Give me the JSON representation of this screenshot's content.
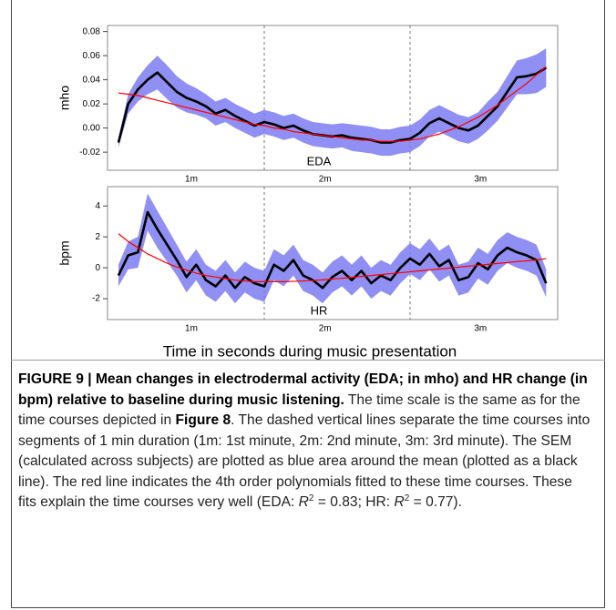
{
  "chart_data": [
    {
      "type": "line",
      "ylabel": "mho",
      "annotation": "EDA",
      "x": [
        0,
        4,
        8,
        12,
        16,
        20,
        24,
        28,
        32,
        36,
        40,
        44,
        48,
        52,
        56,
        60,
        64,
        68,
        72,
        76,
        80,
        84,
        88,
        92,
        96,
        100,
        104,
        108,
        112,
        116,
        120,
        124,
        128,
        132,
        136,
        140,
        144,
        148,
        152,
        156,
        160,
        164,
        168,
        172,
        176
      ],
      "xlim": [
        -4.5,
        180.75
      ],
      "xticks": [
        {
          "value": 30,
          "label": "1m"
        },
        {
          "value": 85,
          "label": "2m"
        },
        {
          "value": 149,
          "label": "3m"
        }
      ],
      "vlines": [
        60,
        120
      ],
      "ylim": [
        -0.035,
        0.085
      ],
      "yticks": [
        -0.02,
        {
          "value": 0,
          "label": "0.00"
        },
        0.02,
        0.04,
        0.06,
        0.08
      ],
      "series": [
        {
          "color": "#000000",
          "band_color": "#7b7bf2",
          "values": [
            -0.012,
            0.02,
            0.032,
            0.04,
            0.046,
            0.038,
            0.03,
            0.025,
            0.022,
            0.018,
            0.012,
            0.015,
            0.01,
            0.006,
            0.002,
            0.005,
            0.003,
            0.0,
            0.002,
            -0.002,
            -0.005,
            -0.006,
            -0.007,
            -0.006,
            -0.008,
            -0.009,
            -0.01,
            -0.012,
            -0.012,
            -0.01,
            -0.009,
            -0.004,
            0.004,
            0.008,
            0.004,
            0.0,
            -0.002,
            0.002,
            0.01,
            0.018,
            0.03,
            0.042,
            0.043,
            0.045,
            0.05
          ],
          "error": [
            0.004,
            0.008,
            0.01,
            0.012,
            0.014,
            0.014,
            0.013,
            0.012,
            0.011,
            0.01,
            0.01,
            0.01,
            0.01,
            0.01,
            0.01,
            0.01,
            0.01,
            0.01,
            0.01,
            0.01,
            0.01,
            0.01,
            0.01,
            0.01,
            0.011,
            0.011,
            0.011,
            0.011,
            0.011,
            0.011,
            0.011,
            0.011,
            0.011,
            0.011,
            0.011,
            0.011,
            0.011,
            0.011,
            0.012,
            0.012,
            0.013,
            0.014,
            0.015,
            0.016,
            0.016
          ]
        },
        {
          "color": "#ff0000",
          "values": [
            0.029,
            0.028,
            0.027,
            0.025,
            0.023,
            0.021,
            0.019,
            0.017,
            0.015,
            0.013,
            0.011,
            0.009,
            0.007,
            0.005,
            0.003,
            0.002,
            0.0,
            -0.001,
            -0.003,
            -0.004,
            -0.005,
            -0.006,
            -0.007,
            -0.008,
            -0.009,
            -0.01,
            -0.01,
            -0.011,
            -0.011,
            -0.011,
            -0.01,
            -0.009,
            -0.007,
            -0.005,
            -0.002,
            0.001,
            0.005,
            0.009,
            0.014,
            0.019,
            0.025,
            0.031,
            0.037,
            0.044,
            0.051
          ]
        }
      ]
    },
    {
      "type": "line",
      "ylabel": "bpm",
      "annotation": "HR",
      "xlabel": "Time in seconds during music presentation",
      "x": [
        0,
        4,
        8,
        12,
        16,
        20,
        24,
        28,
        32,
        36,
        40,
        44,
        48,
        52,
        56,
        60,
        64,
        68,
        72,
        76,
        80,
        84,
        88,
        92,
        96,
        100,
        104,
        108,
        112,
        116,
        120,
        124,
        128,
        132,
        136,
        140,
        144,
        148,
        152,
        156,
        160,
        164,
        168,
        172,
        176
      ],
      "xlim": [
        -4.5,
        180.75
      ],
      "xticks": [
        {
          "value": 30,
          "label": "1m"
        },
        {
          "value": 85,
          "label": "2m"
        },
        {
          "value": 149,
          "label": "3m"
        }
      ],
      "vlines": [
        60,
        120
      ],
      "ylim": [
        -3.35,
        5.25
      ],
      "yticks": [
        -2,
        0,
        2,
        4
      ],
      "series": [
        {
          "color": "#000000",
          "band_color": "#7b7bf2",
          "values": [
            -0.5,
            0.8,
            1.0,
            3.6,
            2.5,
            1.5,
            0.5,
            -0.6,
            0.2,
            -0.8,
            -1.2,
            -0.5,
            -1.3,
            -0.6,
            -1.0,
            -1.2,
            0.2,
            -0.2,
            0.5,
            -0.5,
            -0.8,
            -1.3,
            -0.6,
            -0.2,
            -0.8,
            -0.2,
            -1.0,
            -0.5,
            -0.8,
            0.0,
            0.6,
            0.2,
            0.9,
            0.1,
            0.5,
            -0.8,
            -0.6,
            0.3,
            -0.1,
            0.8,
            1.3,
            1.0,
            0.8,
            0.5,
            -1.0
          ],
          "error": [
            0.7,
            0.9,
            1.0,
            1.2,
            1.2,
            1.1,
            1.0,
            1.0,
            1.0,
            1.0,
            1.0,
            1.0,
            1.0,
            1.0,
            1.0,
            1.0,
            1.0,
            1.0,
            1.0,
            1.0,
            1.0,
            1.0,
            1.0,
            1.0,
            1.0,
            1.0,
            1.0,
            1.0,
            1.0,
            1.0,
            1.0,
            1.0,
            1.0,
            1.0,
            1.0,
            1.0,
            1.0,
            1.0,
            1.0,
            1.0,
            1.0,
            1.0,
            1.0,
            1.0,
            0.9
          ]
        },
        {
          "color": "#ff0000",
          "values": [
            2.2,
            1.7,
            1.3,
            0.9,
            0.6,
            0.3,
            0.05,
            -0.15,
            -0.35,
            -0.5,
            -0.6,
            -0.7,
            -0.8,
            -0.85,
            -0.9,
            -0.9,
            -0.9,
            -0.9,
            -0.88,
            -0.85,
            -0.82,
            -0.78,
            -0.73,
            -0.68,
            -0.62,
            -0.56,
            -0.5,
            -0.44,
            -0.38,
            -0.32,
            -0.26,
            -0.2,
            -0.14,
            -0.08,
            -0.02,
            0.04,
            0.1,
            0.16,
            0.22,
            0.28,
            0.34,
            0.4,
            0.45,
            0.5,
            0.6
          ]
        }
      ]
    }
  ],
  "caption": {
    "runs": [
      {
        "text": "FIGURE 9 | Mean changes in electrodermal activity (EDA; in mho) and HR change (in bpm) relative to baseline during music listening.",
        "bold": true
      },
      {
        "text": " The time scale is the same as for the time courses depicted in "
      },
      {
        "text": "Figure 8",
        "bold": true
      },
      {
        "text": ". The dashed vertical lines separate the time courses into segments of 1 min duration (1m: 1st minute, 2m: 2nd minute, 3m: 3rd minute). The SEM (calculated across subjects) are plotted as blue area around the mean (plotted as a black line). The red line indicates the 4th order polynomials fitted to these time courses. These fits explain the time courses very well (EDA: "
      },
      {
        "text": "R",
        "italic": true
      },
      {
        "text": "2",
        "sup": true
      },
      {
        "text": " = 0.83; HR: "
      },
      {
        "text": "R",
        "italic": true
      },
      {
        "text": "2",
        "sup": true
      },
      {
        "text": " = 0.77)."
      }
    ]
  }
}
